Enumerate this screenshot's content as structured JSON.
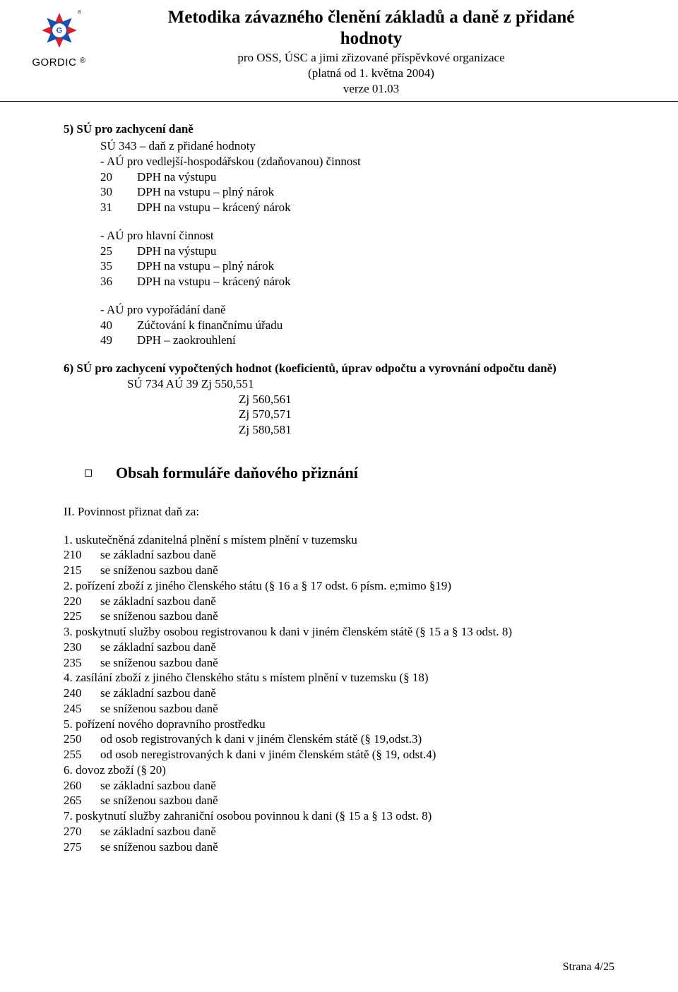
{
  "header": {
    "title_l1": "Metodika závazného členění základů a daně z přidané",
    "title_l2": "hodnoty",
    "sub1": "pro OSS, ÚSC a jimi zřizované příspěvkové organizace",
    "sub2": "(platná od 1. května 2004)",
    "sub3": "verze 01.03",
    "logo_caption": "GORDIC",
    "logo_reg": "®"
  },
  "s5": {
    "head": "5) SÚ pro zachycení daně",
    "su_line": "SÚ 343 – daň z přidané hodnoty",
    "g1_head": "- AÚ pro vedlejší-hospodářskou (zdaňovanou) činnost",
    "g1": [
      {
        "c": "20",
        "t": "DPH na výstupu"
      },
      {
        "c": "30",
        "t": "DPH na vstupu – plný nárok"
      },
      {
        "c": "31",
        "t": "DPH na vstupu – krácený nárok"
      }
    ],
    "g2_head": "- AÚ pro hlavní činnost",
    "g2": [
      {
        "c": "25",
        "t": "DPH na výstupu"
      },
      {
        "c": "35",
        "t": "DPH na vstupu – plný nárok"
      },
      {
        "c": "36",
        "t": "DPH na vstupu – krácený nárok"
      }
    ],
    "g3_head": "- AÚ pro vypořádání daně",
    "g3": [
      {
        "c": "40",
        "t": "Zúčtování k finančnímu úřadu"
      },
      {
        "c": "49",
        "t": "DPH – zaokrouhlení"
      }
    ]
  },
  "s6": {
    "head": "6) SÚ pro zachycení vypočtených hodnot (koeficientů, úprav odpočtu a vyrovnání odpočtu daně)",
    "l1": "SÚ 734  AÚ 39   Zj 550,551",
    "zj": [
      "Zj 560,561",
      "Zj 570,571",
      "Zj 580,581"
    ]
  },
  "form": {
    "title": "Obsah formuláře daňového přiznání",
    "subhead": "II. Povinnost přiznat daň za:",
    "items": [
      {
        "h": "1. uskutečněná zdanitelná plnění s místem plnění v tuzemsku",
        "rows": [
          {
            "c": "210",
            "t": "se základní sazbou daně"
          },
          {
            "c": "215",
            "t": "se sníženou sazbou daně"
          }
        ]
      },
      {
        "h": "2. pořízení zboží z jiného členského státu (§ 16 a § 17 odst. 6 písm. e;mimo §19)",
        "rows": [
          {
            "c": "220",
            "t": "se základní sazbou daně"
          },
          {
            "c": "225",
            "t": "se sníženou sazbou daně"
          }
        ]
      },
      {
        "h": "3. poskytnutí služby osobou registrovanou k dani v jiném členském státě (§ 15 a § 13 odst. 8)",
        "rows": [
          {
            "c": "230",
            "t": "se základní sazbou daně"
          },
          {
            "c": "235",
            "t": "se sníženou sazbou daně"
          }
        ]
      },
      {
        "h": "4. zasílání zboží z jiného členského státu s místem plnění v tuzemsku (§ 18)",
        "rows": [
          {
            "c": "240",
            "t": "se základní sazbou daně"
          },
          {
            "c": "245",
            "t": "se sníženou sazbou daně"
          }
        ]
      },
      {
        "h": "5. pořízení nového dopravního prostředku",
        "rows": [
          {
            "c": "250",
            "t": "od osob registrovaných k dani v jiném členském státě (§ 19,odst.3)"
          },
          {
            "c": "255",
            "t": "od osob neregistrovaných k dani v jiném členském státě (§ 19, odst.4)"
          }
        ]
      },
      {
        "h": "6. dovoz zboží (§ 20)",
        "rows": [
          {
            "c": "260",
            "t": "se základní sazbou daně"
          },
          {
            "c": "265",
            "t": "se sníženou sazbou daně"
          }
        ]
      },
      {
        "h": "7. poskytnutí služby zahraniční osobou povinnou k dani (§ 15 a § 13 odst. 8)",
        "rows": [
          {
            "c": "270",
            "t": "se základní sazbou daně"
          },
          {
            "c": "275",
            "t": "se sníženou sazbou daně"
          }
        ]
      }
    ]
  },
  "footer": "Strana 4/25",
  "colors": {
    "logo_red": "#d4212a",
    "logo_blue": "#1a4fb0"
  }
}
